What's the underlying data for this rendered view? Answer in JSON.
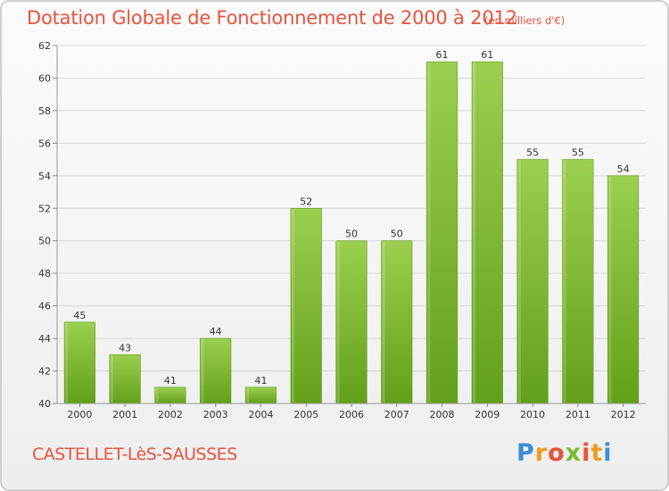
{
  "header": {
    "title": "Dotation Globale de Fonctionnement de 2000 à 2012",
    "subtitle": "(en milliers d'€)"
  },
  "footer": {
    "commune": "CASTELLET-LèS-SAUSSES",
    "logo_letters": [
      "P",
      "r",
      "o",
      "x",
      "i",
      "t",
      "i"
    ],
    "logo_colors": [
      "#3b8fd6",
      "#f39a1f",
      "#e8533c",
      "#7bbd2e",
      "#e8533c",
      "#f39a1f",
      "#3b8fd6"
    ]
  },
  "chart_data": {
    "type": "bar",
    "categories": [
      "2000",
      "2001",
      "2002",
      "2003",
      "2004",
      "2005",
      "2006",
      "2007",
      "2008",
      "2009",
      "2010",
      "2011",
      "2012"
    ],
    "values": [
      45,
      43,
      41,
      44,
      41,
      52,
      50,
      50,
      61,
      61,
      55,
      55,
      54
    ],
    "title": "Dotation Globale de Fonctionnement de 2000 à 2012",
    "subtitle": "(en milliers d'€)",
    "xlabel": "",
    "ylabel": "",
    "ylim": [
      40,
      62
    ],
    "yticks": [
      40,
      42,
      44,
      46,
      48,
      50,
      52,
      54,
      56,
      58,
      60,
      62
    ],
    "grid": true,
    "bar_color_top": "#9ccf4f",
    "bar_color_bottom": "#62a019"
  }
}
